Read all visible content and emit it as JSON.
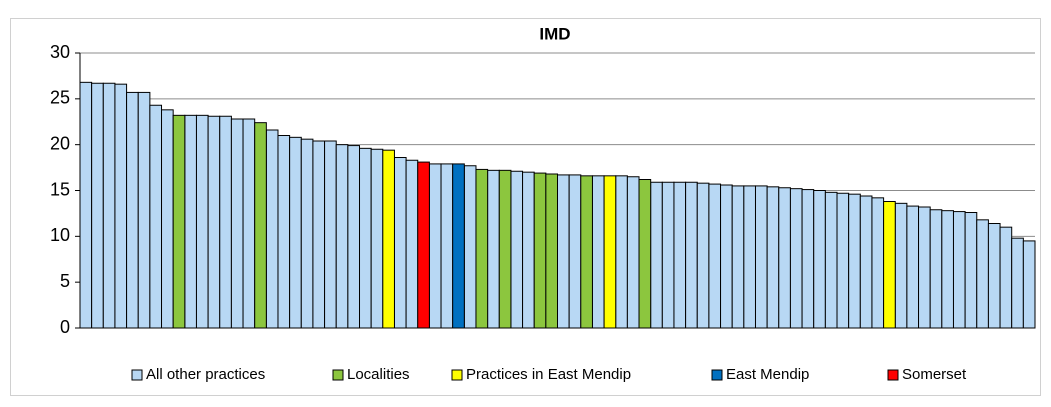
{
  "chart_data": {
    "type": "bar",
    "title": "IMD",
    "categories": [
      null,
      null,
      null,
      null,
      null,
      null,
      null,
      null,
      null,
      null,
      null,
      null,
      null,
      null,
      null,
      null,
      null,
      null,
      null,
      null,
      null,
      null,
      null,
      null,
      null,
      null,
      null,
      null,
      null,
      null,
      null,
      null,
      null,
      null,
      null,
      null,
      null,
      null,
      null,
      null,
      null,
      null,
      null,
      null,
      null,
      null,
      null,
      null,
      null,
      null,
      null,
      null,
      null,
      null,
      null,
      null,
      null,
      null,
      null,
      null,
      null,
      null,
      null,
      null,
      null,
      null,
      null,
      null,
      null,
      null,
      null,
      null,
      null,
      null,
      null,
      null,
      null,
      null,
      null,
      null,
      null,
      null
    ],
    "series": [
      {
        "name": "All other practices",
        "color": "#b8d8f4",
        "values": [
          26.8,
          26.7,
          26.7,
          26.6,
          25.7,
          25.7,
          24.3,
          23.8,
          null,
          23.2,
          23.2,
          23.1,
          23.1,
          22.8,
          22.8,
          null,
          21.6,
          21.0,
          20.8,
          20.6,
          20.4,
          20.4,
          20.0,
          19.9,
          19.6,
          19.5,
          null,
          18.6,
          18.3,
          null,
          17.9,
          17.9,
          null,
          17.7,
          null,
          17.2,
          null,
          17.1,
          17.0,
          null,
          null,
          16.7,
          16.7,
          null,
          16.6,
          null,
          16.6,
          16.5,
          null,
          15.9,
          15.9,
          15.9,
          15.9,
          15.8,
          15.7,
          15.6,
          15.5,
          15.5,
          15.5,
          15.4,
          15.3,
          15.2,
          15.1,
          15.0,
          14.8,
          14.7,
          14.6,
          14.4,
          14.2,
          null,
          13.6,
          13.3,
          13.2,
          12.9,
          12.8,
          12.7,
          12.6,
          11.8,
          11.4,
          11.0,
          9.8,
          9.5
        ]
      },
      {
        "name": "Localities",
        "color": "#8cc63e",
        "values": [
          null,
          null,
          null,
          null,
          null,
          null,
          null,
          null,
          23.2,
          null,
          null,
          null,
          null,
          null,
          null,
          22.4,
          null,
          null,
          null,
          null,
          null,
          null,
          null,
          null,
          null,
          null,
          null,
          null,
          null,
          null,
          null,
          null,
          null,
          null,
          17.3,
          null,
          17.2,
          null,
          null,
          16.9,
          16.8,
          null,
          null,
          16.6,
          null,
          null,
          null,
          null,
          16.2,
          null,
          null,
          null,
          null,
          null,
          null,
          null,
          null,
          null,
          null,
          null,
          null,
          null,
          null,
          null,
          null,
          null,
          null,
          null,
          null,
          null,
          null,
          null,
          null,
          null,
          null,
          null,
          null,
          null,
          null,
          null,
          null,
          null
        ]
      },
      {
        "name": "Practices in East Mendip",
        "color": "#ffff00",
        "values": [
          null,
          null,
          null,
          null,
          null,
          null,
          null,
          null,
          null,
          null,
          null,
          null,
          null,
          null,
          null,
          null,
          null,
          null,
          null,
          null,
          null,
          null,
          null,
          null,
          null,
          null,
          19.4,
          null,
          null,
          null,
          null,
          null,
          null,
          null,
          null,
          null,
          null,
          null,
          null,
          null,
          null,
          null,
          null,
          null,
          null,
          16.6,
          null,
          null,
          null,
          null,
          null,
          null,
          null,
          null,
          null,
          null,
          null,
          null,
          null,
          null,
          null,
          null,
          null,
          null,
          null,
          null,
          null,
          null,
          null,
          13.8,
          null,
          null,
          null,
          null,
          null,
          null,
          null,
          null,
          null,
          null,
          null,
          null
        ]
      },
      {
        "name": "East Mendip",
        "color": "#0070c0",
        "values": [
          null,
          null,
          null,
          null,
          null,
          null,
          null,
          null,
          null,
          null,
          null,
          null,
          null,
          null,
          null,
          null,
          null,
          null,
          null,
          null,
          null,
          null,
          null,
          null,
          null,
          null,
          null,
          null,
          null,
          null,
          null,
          null,
          17.9,
          null,
          null,
          null,
          null,
          null,
          null,
          null,
          null,
          null,
          null,
          null,
          null,
          null,
          null,
          null,
          null,
          null,
          null,
          null,
          null,
          null,
          null,
          null,
          null,
          null,
          null,
          null,
          null,
          null,
          null,
          null,
          null,
          null,
          null,
          null,
          null,
          null,
          null,
          null,
          null,
          null,
          null,
          null,
          null,
          null,
          null,
          null,
          null,
          null
        ]
      },
      {
        "name": "Somerset",
        "color": "#ff0000",
        "values": [
          null,
          null,
          null,
          null,
          null,
          null,
          null,
          null,
          null,
          null,
          null,
          null,
          null,
          null,
          null,
          null,
          null,
          null,
          null,
          null,
          null,
          null,
          null,
          null,
          null,
          null,
          null,
          null,
          null,
          18.1,
          null,
          null,
          null,
          null,
          null,
          null,
          null,
          null,
          null,
          null,
          null,
          null,
          null,
          null,
          null,
          null,
          null,
          null,
          null,
          null,
          null,
          null,
          null,
          null,
          null,
          null,
          null,
          null,
          null,
          null,
          null,
          null,
          null,
          null,
          null,
          null,
          null,
          null,
          null,
          null,
          null,
          null,
          null,
          null,
          null,
          null,
          null,
          null,
          null,
          null,
          null,
          null
        ]
      }
    ],
    "ylim": [
      0,
      30
    ],
    "yticks": [
      0,
      5,
      10,
      15,
      20,
      25,
      30
    ],
    "grid": true,
    "legend": "bottom"
  }
}
